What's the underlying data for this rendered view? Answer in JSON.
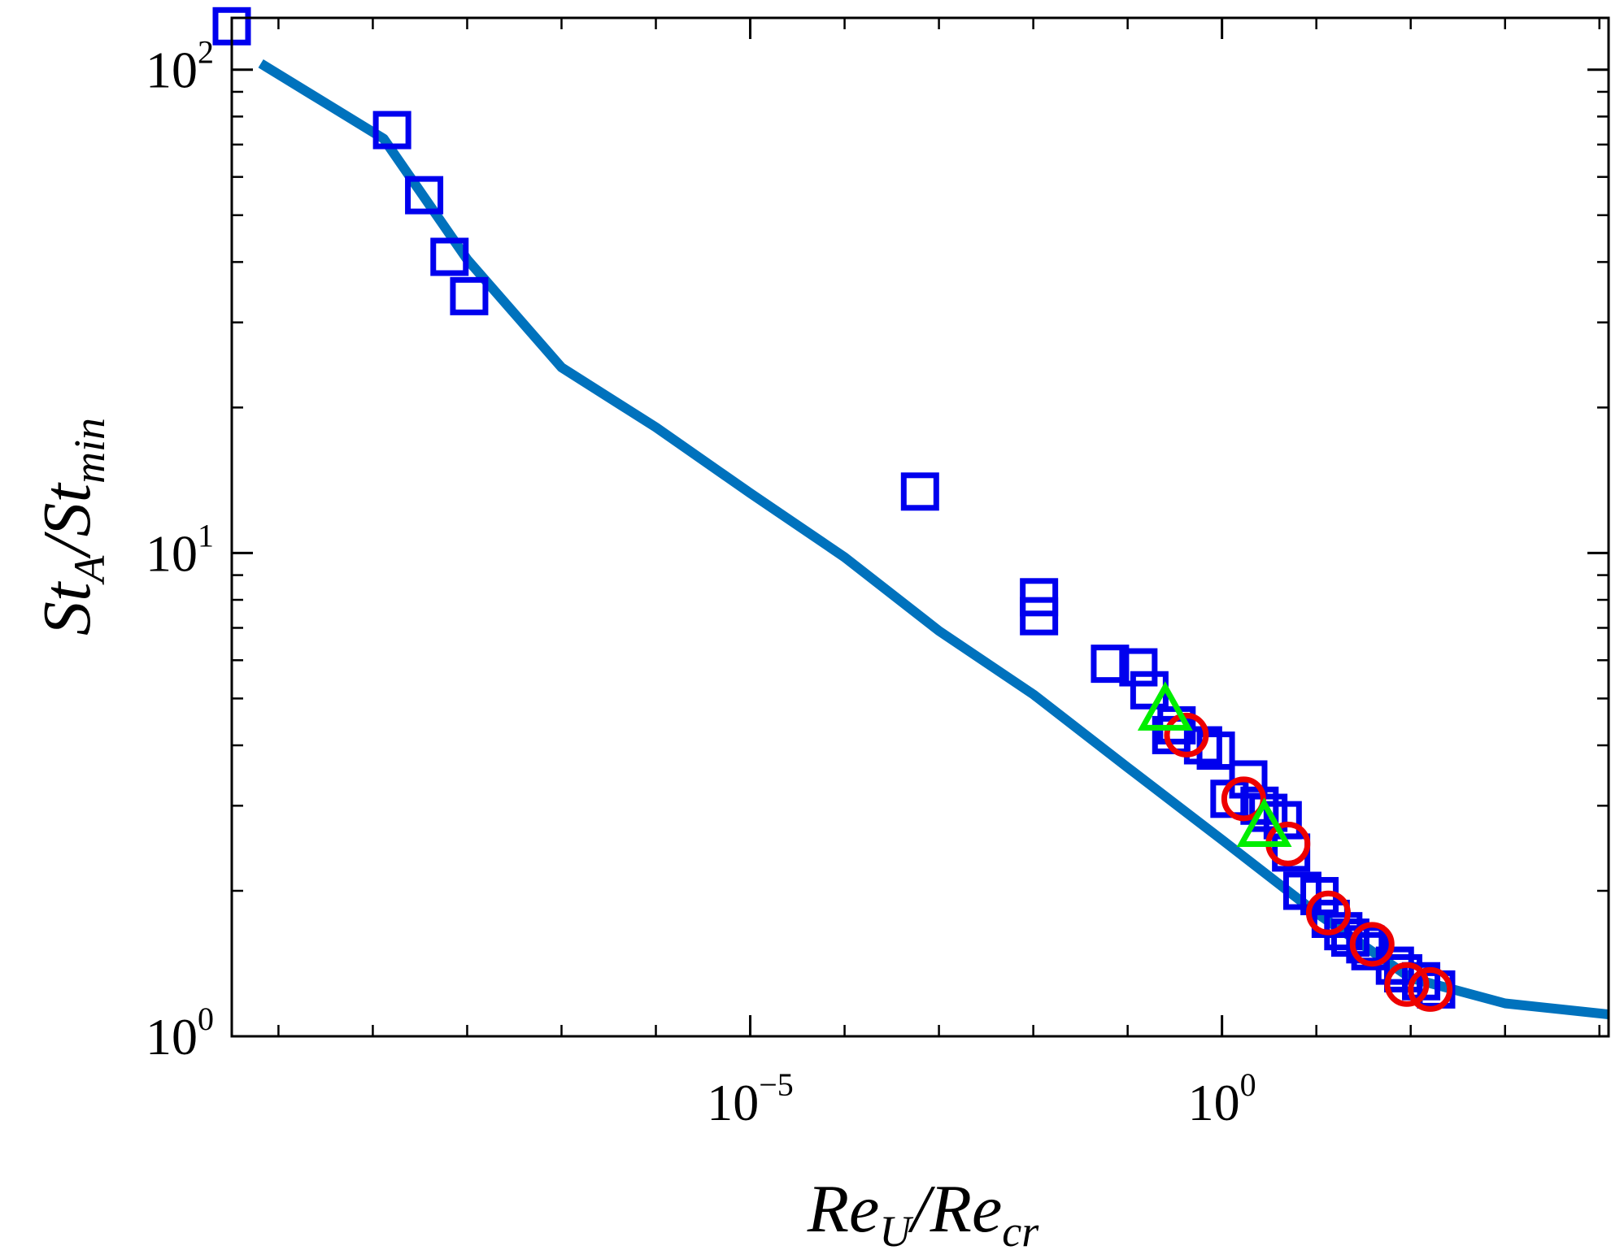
{
  "chart_data": {
    "type": "scatter",
    "title": "",
    "xlabel": {
      "base1": "Re",
      "sub1": "U",
      "slash": "/",
      "base2": "Re",
      "sub2": "cr"
    },
    "ylabel": {
      "base1": "St",
      "sub1": "A",
      "slash": "/",
      "base2": "St",
      "sub2": "min"
    },
    "x_scale": "log",
    "y_scale": "log",
    "xlim": [
      3.2e-11,
      12500
    ],
    "ylim": [
      1,
      128
    ],
    "x_ticks": [
      {
        "value": 1e-05,
        "base": "10",
        "exp": "−5"
      },
      {
        "value": 1,
        "base": "10",
        "exp": "0"
      }
    ],
    "y_ticks": [
      {
        "value": 1,
        "base": "10",
        "exp": "0"
      },
      {
        "value": 10,
        "base": "10",
        "exp": "1"
      },
      {
        "value": 100,
        "base": "10",
        "exp": "2"
      }
    ],
    "grid": false,
    "legend": "none",
    "series": [
      {
        "marker": "square",
        "color": "#0000ee",
        "points": [
          [
            3.2e-11,
            123
          ],
          [
            1.6e-09,
            75
          ],
          [
            3.5e-09,
            55
          ],
          [
            6.5e-09,
            41
          ],
          [
            1.05e-08,
            34
          ],
          [
            0.00063,
            13.4
          ],
          [
            0.0115,
            8.1
          ],
          [
            0.0115,
            7.4
          ],
          [
            0.065,
            5.9
          ],
          [
            0.13,
            5.8
          ],
          [
            0.17,
            5.2
          ],
          [
            0.29,
            4.2
          ],
          [
            0.33,
            4.4
          ],
          [
            0.63,
            4.0
          ],
          [
            0.86,
            3.9
          ],
          [
            1.2,
            3.1
          ],
          [
            1.9,
            3.4
          ],
          [
            2.5,
            3.0
          ],
          [
            3.1,
            2.9
          ],
          [
            4.4,
            2.8
          ],
          [
            5.4,
            2.4
          ],
          [
            7.1,
            2.0
          ],
          [
            10.8,
            1.95
          ],
          [
            14.2,
            1.75
          ],
          [
            19.3,
            1.65
          ],
          [
            22.9,
            1.6
          ],
          [
            33,
            1.55
          ],
          [
            37.4,
            1.5
          ],
          [
            68,
            1.4
          ],
          [
            83.3,
            1.35
          ],
          [
            129,
            1.3
          ],
          [
            186,
            1.25
          ]
        ]
      },
      {
        "marker": "circle",
        "color": "#ee0000",
        "points": [
          [
            0.42,
            4.2
          ],
          [
            1.7,
            3.1
          ],
          [
            5.0,
            2.5
          ],
          [
            13.4,
            1.8
          ],
          [
            39,
            1.55
          ],
          [
            91,
            1.28
          ],
          [
            161,
            1.25
          ]
        ]
      },
      {
        "marker": "triangle",
        "color": "#00ee00",
        "points": [
          [
            0.25,
            4.7
          ],
          [
            2.8,
            2.7
          ]
        ]
      },
      {
        "type": "line",
        "color": "#0072bd",
        "points": [
          [
            6.5e-11,
            103
          ],
          [
            1.3e-09,
            72
          ],
          [
            1e-08,
            40.5
          ],
          [
            1e-07,
            24.2
          ],
          [
            1e-06,
            18.2
          ],
          [
            1e-05,
            13.3
          ],
          [
            0.0001,
            9.8
          ],
          [
            0.001,
            6.9
          ],
          [
            0.01,
            5.1
          ],
          [
            0.1,
            3.6
          ],
          [
            1.0,
            2.55
          ],
          [
            10,
            1.8
          ],
          [
            100,
            1.32
          ],
          [
            1000,
            1.17
          ],
          [
            12500,
            1.11
          ]
        ]
      }
    ]
  }
}
